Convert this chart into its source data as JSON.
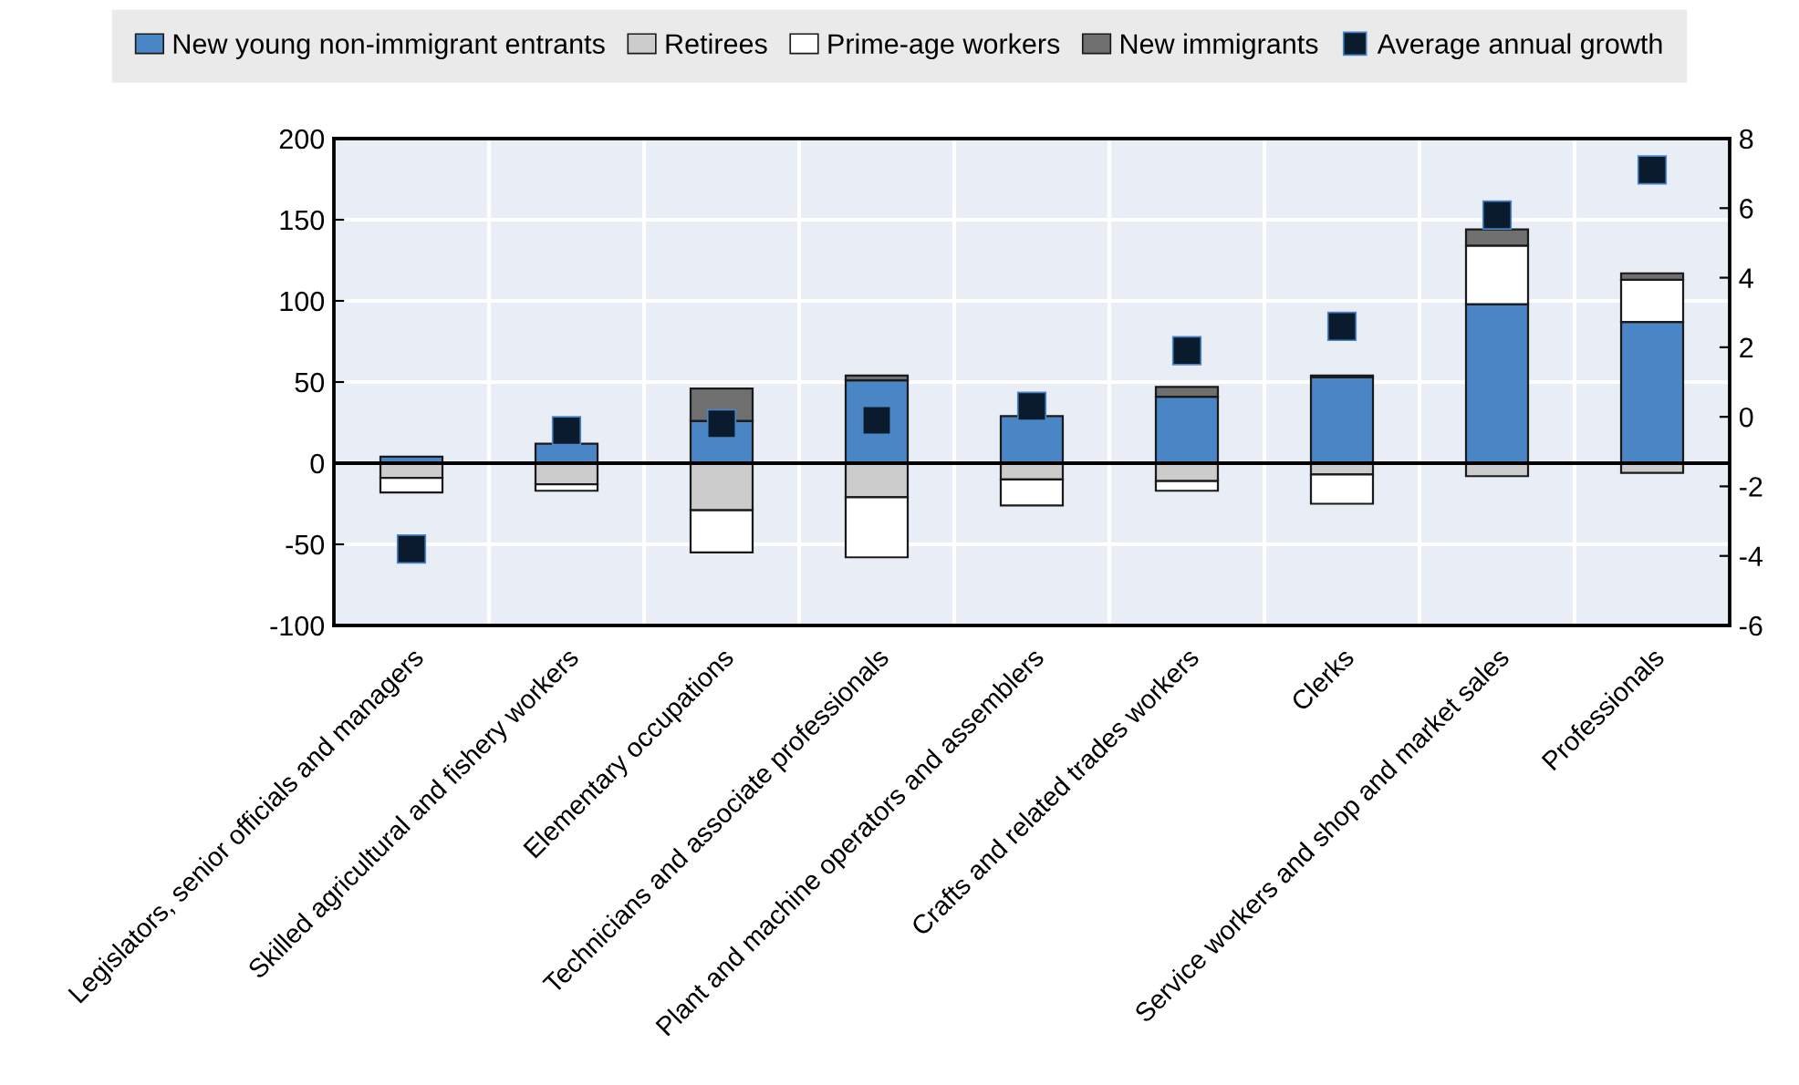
{
  "chart_data": {
    "type": "bar",
    "stacked": true,
    "categories": [
      "Legislators, senior officials and managers",
      "Skilled agricultural and fishery workers",
      "Elementary occupations",
      "Technicians and associate professionals",
      "Plant and machine operators and assemblers",
      "Crafts and related trades workers",
      "Clerks",
      "Service workers and shop and market sales",
      "Professionals"
    ],
    "series": [
      {
        "name": "New young non-immigrant entrants",
        "color": "#4a86c5",
        "values": [
          4,
          12,
          26,
          51,
          29,
          41,
          53,
          98,
          87
        ]
      },
      {
        "name": "Retirees",
        "color": "#cccccc",
        "values": [
          -9,
          -13,
          -29,
          -21,
          -10,
          -11,
          -7,
          -8,
          -6
        ]
      },
      {
        "name": "Prime-age workers",
        "color": "#ffffff",
        "values": [
          -9,
          -4,
          -26,
          -37,
          -16,
          -6,
          -18,
          36,
          26
        ]
      },
      {
        "name": "New immigrants",
        "color": "#6f6f6f",
        "values": [
          null,
          null,
          20,
          3,
          null,
          6,
          1,
          10,
          4
        ]
      },
      {
        "name": "Average annual growth",
        "type": "scatter",
        "axis": "y2",
        "marker": "square",
        "color": "#0b1b2e",
        "values": [
          -3.8,
          -0.4,
          -0.2,
          -0.1,
          0.3,
          1.9,
          2.6,
          5.8,
          7.1
        ]
      }
    ],
    "ylim": [
      -100,
      200
    ],
    "yticks": [
      -100,
      -50,
      0,
      50,
      100,
      150,
      200
    ],
    "y2lim": [
      -6,
      8
    ],
    "y2ticks": [
      -6,
      -4,
      -2,
      0,
      2,
      4,
      6,
      8
    ],
    "ref_lines": [
      {
        "axis": "y",
        "value": 0,
        "color": "#000000"
      }
    ],
    "grid": true,
    "legend": "top"
  }
}
